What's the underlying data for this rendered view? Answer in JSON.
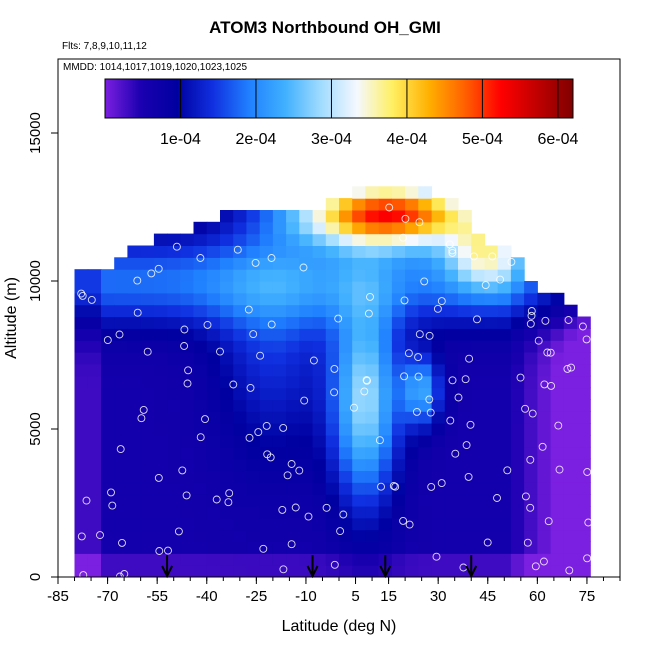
{
  "chart_data": {
    "type": "heatmap",
    "title": "ATOM3 Northbound OH_GMI",
    "flights_label": "Flts: 7,8,9,10,11,12",
    "dates_label": "MMDD: 1014,1017,1019,1020,1023,1025",
    "xlabel": "Latitude (deg N)",
    "ylabel": "Altitude (m)",
    "xlim": [
      -85,
      85
    ],
    "ylim": [
      0,
      17500
    ],
    "x_ticks": [
      -85,
      -70,
      -55,
      -40,
      -25,
      -10,
      5,
      15,
      30,
      45,
      60,
      75
    ],
    "x_tick_labels": [
      "-85",
      "-70",
      "-55",
      "-40",
      "-25",
      "-10",
      "5",
      "15",
      "30",
      "45",
      "60",
      "75"
    ],
    "y_ticks": [
      0,
      5000,
      10000,
      15000
    ],
    "y_tick_labels": [
      "0",
      "5000",
      "10000",
      "15000"
    ],
    "colorbar": {
      "range": [
        0,
        0.00062
      ],
      "ticks": [
        0.0001,
        0.0002,
        0.0003,
        0.0004,
        0.0005,
        0.0006
      ],
      "tick_labels": [
        "1e-04",
        "2e-04",
        "3e-04",
        "4e-04",
        "5e-04",
        "6e-04"
      ],
      "colors": [
        "#7b1fe0",
        "#1a00b0",
        "#0000a0",
        "#1030e0",
        "#2080ff",
        "#40b0ff",
        "#a0dcff",
        "#f5f8ff",
        "#ffef60",
        "#ffb000",
        "#ff6000",
        "#ff0000",
        "#c00000",
        "#800000"
      ]
    },
    "arrows_latitude": [
      -52,
      -8,
      14,
      40
    ],
    "grid": false,
    "legend": "colorbar top"
  }
}
